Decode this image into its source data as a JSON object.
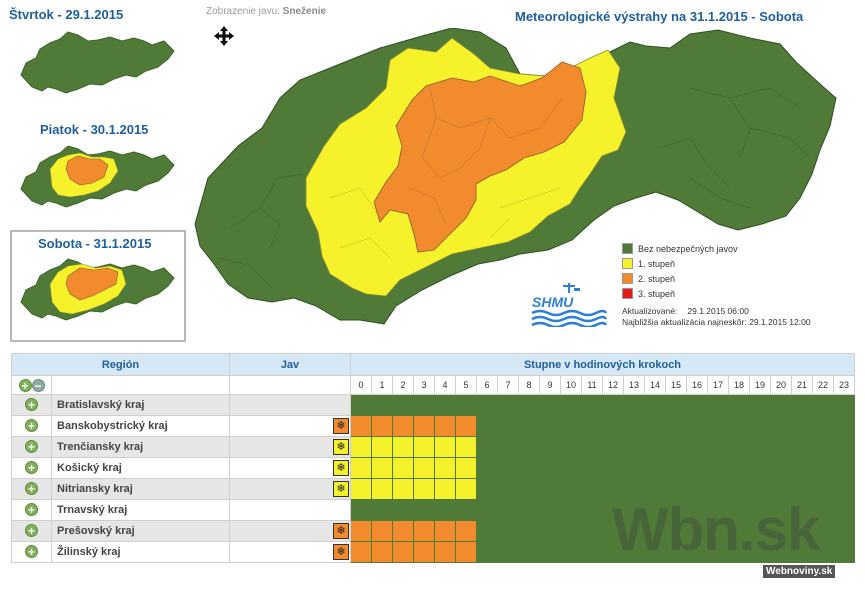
{
  "thumbnails": [
    {
      "title": "Štvrtok - 29.1.2015",
      "selected": false,
      "mode": "green"
    },
    {
      "title": "Piatok - 30.1.2015",
      "selected": false,
      "mode": "small"
    },
    {
      "title": "Sobota - 31.1.2015",
      "selected": true,
      "mode": "big"
    }
  ],
  "display": {
    "label": "Zobrazenie javu:",
    "value": "Sneženie",
    "move_icon": "move-arrows-icon"
  },
  "main_title": "Meteorologické výstrahy na 31.1.2015 - Sobota",
  "legend": [
    {
      "label": "Bez nebezpečných javov",
      "color": "#4f7a38"
    },
    {
      "label": "1. stupeň",
      "color": "#f5f12a"
    },
    {
      "label": "2. stupeň",
      "color": "#f28a2e"
    },
    {
      "label": "3. stupeň",
      "color": "#e41b1b"
    }
  ],
  "logo_text": "SHMU",
  "update": {
    "updated_label": "Aktualizované:",
    "updated_value": "29.1.2015 06:00",
    "next_label": "Najbližšia aktualizácia najneskôr:",
    "next_value": "29.1.2015 12:00"
  },
  "table": {
    "col_region": "Región",
    "col_jav": "Jav",
    "col_steps": "Stupne v hodinových krokoch",
    "hours": [
      "0",
      "1",
      "2",
      "3",
      "4",
      "5",
      "6",
      "7",
      "8",
      "9",
      "10",
      "11",
      "12",
      "13",
      "14",
      "15",
      "16",
      "17",
      "18",
      "19",
      "20",
      "21",
      "22",
      "23"
    ],
    "colors": {
      "0": "#4f7a38",
      "1": "#f5f12a",
      "2": "#f28a2e"
    },
    "rows": [
      {
        "name": "Bratislavský kraj",
        "icon": "",
        "badge_color": "",
        "levels": [
          0,
          0,
          0,
          0,
          0,
          0,
          0,
          0,
          0,
          0,
          0,
          0,
          0,
          0,
          0,
          0,
          0,
          0,
          0,
          0,
          0,
          0,
          0,
          0
        ]
      },
      {
        "name": "Banskobystrický kraj",
        "icon": "❄",
        "badge_color": "#f28a2e",
        "levels": [
          2,
          2,
          2,
          2,
          2,
          2,
          0,
          0,
          0,
          0,
          0,
          0,
          0,
          0,
          0,
          0,
          0,
          0,
          0,
          0,
          0,
          0,
          0,
          0
        ]
      },
      {
        "name": "Trenčiansky kraj",
        "icon": "❄",
        "badge_color": "#f5f12a",
        "levels": [
          1,
          1,
          1,
          1,
          1,
          1,
          0,
          0,
          0,
          0,
          0,
          0,
          0,
          0,
          0,
          0,
          0,
          0,
          0,
          0,
          0,
          0,
          0,
          0
        ]
      },
      {
        "name": "Košický kraj",
        "icon": "❄",
        "badge_color": "#f5f12a",
        "levels": [
          1,
          1,
          1,
          1,
          1,
          1,
          0,
          0,
          0,
          0,
          0,
          0,
          0,
          0,
          0,
          0,
          0,
          0,
          0,
          0,
          0,
          0,
          0,
          0
        ]
      },
      {
        "name": "Nitriansky kraj",
        "icon": "❄",
        "badge_color": "#f5f12a",
        "levels": [
          1,
          1,
          1,
          1,
          1,
          1,
          0,
          0,
          0,
          0,
          0,
          0,
          0,
          0,
          0,
          0,
          0,
          0,
          0,
          0,
          0,
          0,
          0,
          0
        ]
      },
      {
        "name": "Trnavský kraj",
        "icon": "",
        "badge_color": "",
        "levels": [
          0,
          0,
          0,
          0,
          0,
          0,
          0,
          0,
          0,
          0,
          0,
          0,
          0,
          0,
          0,
          0,
          0,
          0,
          0,
          0,
          0,
          0,
          0,
          0
        ]
      },
      {
        "name": "Prešovský kraj",
        "icon": "❄",
        "badge_color": "#f28a2e",
        "levels": [
          2,
          2,
          2,
          2,
          2,
          2,
          0,
          0,
          0,
          0,
          0,
          0,
          0,
          0,
          0,
          0,
          0,
          0,
          0,
          0,
          0,
          0,
          0,
          0
        ]
      },
      {
        "name": "Žilinský kraj",
        "icon": "❄",
        "badge_color": "#f28a2e",
        "levels": [
          2,
          2,
          2,
          2,
          2,
          2,
          0,
          0,
          0,
          0,
          0,
          0,
          0,
          0,
          0,
          0,
          0,
          0,
          0,
          0,
          0,
          0,
          0,
          0
        ]
      }
    ]
  },
  "watermark": "Wbn.sk",
  "watermark_small": "Webnoviny.sk"
}
